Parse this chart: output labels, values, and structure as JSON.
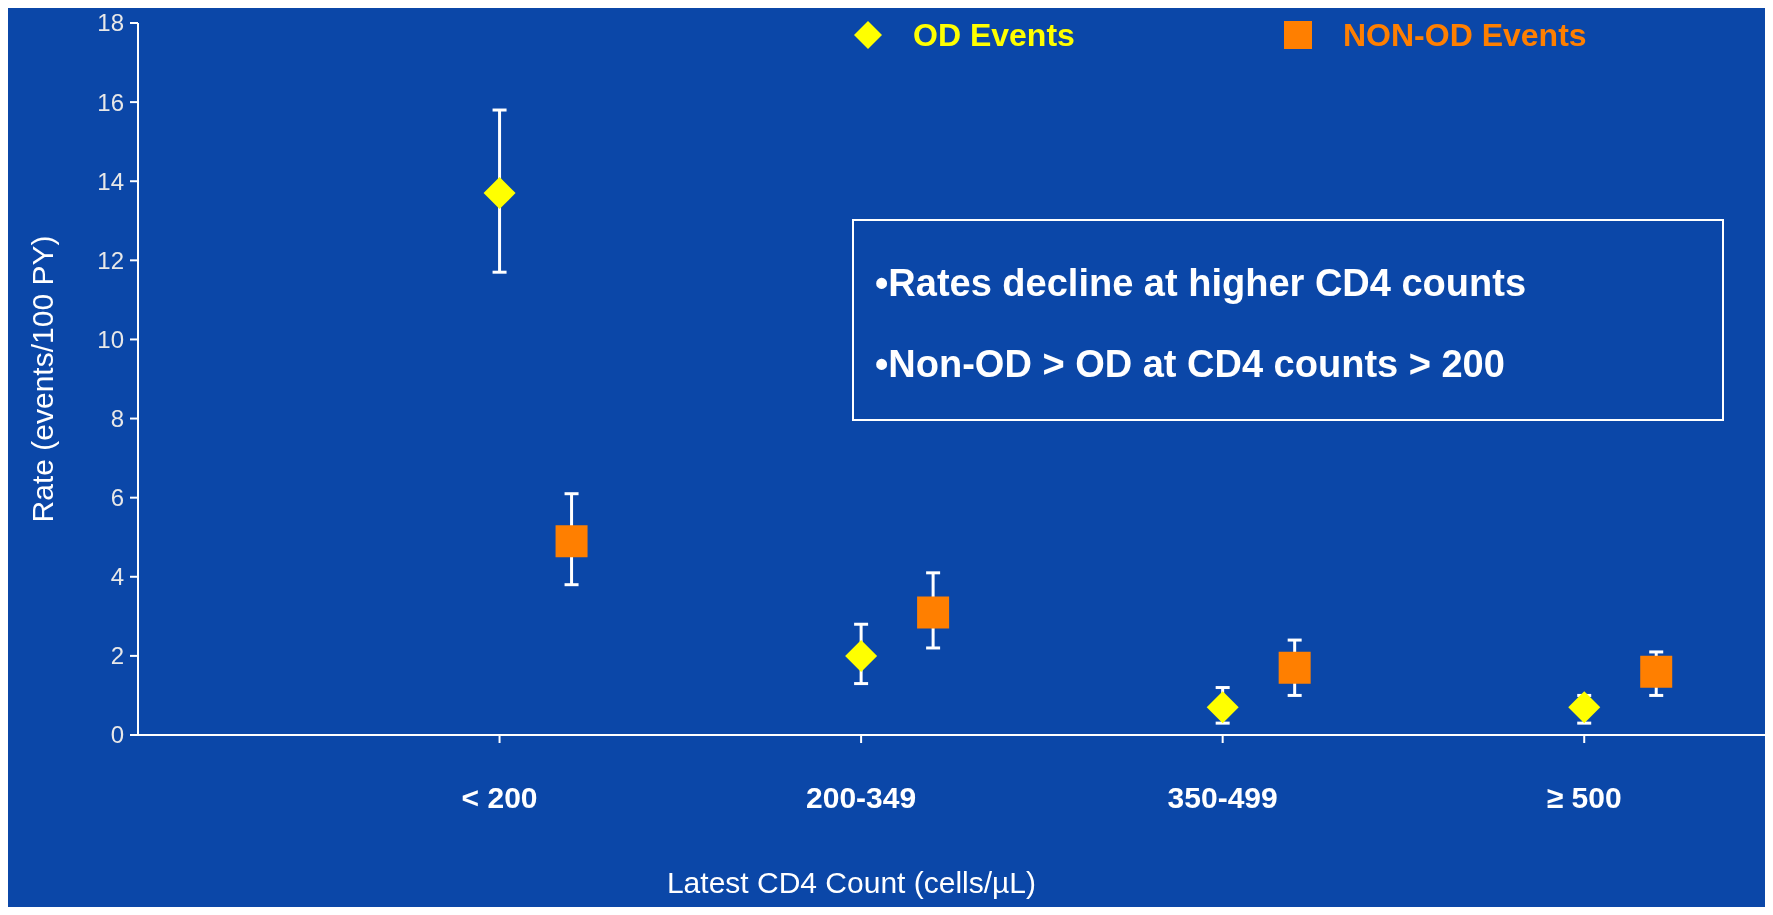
{
  "chart_data": {
    "type": "scatter",
    "xlabel": "Latest CD4 Count (cells/µL)",
    "ylabel": "Rate (events/100 PY)",
    "categories": [
      "< 200",
      "200-349",
      "350-499",
      "≥ 500"
    ],
    "series": [
      {
        "name": "OD Events",
        "color": "#ffff00",
        "marker": "diamond",
        "values": [
          13.7,
          2.0,
          0.7,
          0.7
        ],
        "errors": [
          [
            11.7,
            15.8
          ],
          [
            1.3,
            2.8
          ],
          [
            0.3,
            1.2
          ],
          [
            0.3,
            1.0
          ]
        ]
      },
      {
        "name": "NON-OD Events",
        "color": "#ff7f00",
        "marker": "square",
        "values": [
          4.9,
          3.1,
          1.7,
          1.6
        ],
        "errors": [
          [
            3.8,
            6.1
          ],
          [
            2.2,
            4.1
          ],
          [
            1.0,
            2.4
          ],
          [
            1.0,
            2.1
          ]
        ]
      }
    ],
    "ylim": [
      0,
      18
    ],
    "yticks": [
      0,
      2,
      4,
      6,
      8,
      10,
      12,
      14,
      16,
      18
    ],
    "legend": "top right",
    "annotations": [
      "•Rates decline at higher CD4 counts",
      "•Non-OD > OD at CD4 counts > 200"
    ]
  }
}
